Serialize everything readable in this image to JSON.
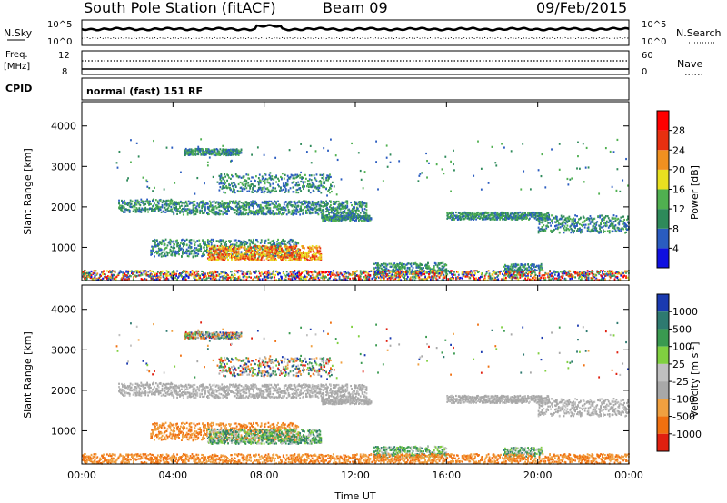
{
  "header": {
    "station": "South Pole Station (fitACF)",
    "beam": "Beam 09",
    "date": "09/Feb/2015"
  },
  "top_panels": {
    "nsky_label": "N.Sky",
    "nsearch_label": "N.Search",
    "noise_ticks": [
      "10^5",
      "10^0"
    ],
    "noise_ticks_right": [
      "10^5",
      "10^0"
    ],
    "freq_label": "Freq.",
    "freq_unit": "[MHz]",
    "freq_ticks": [
      "12",
      "8"
    ],
    "nave_label": "Nave",
    "nave_ticks": [
      "60",
      "0"
    ],
    "cpid_label": "CPID",
    "cpid_value": "normal (fast) 151 RF"
  },
  "chart_data": [
    {
      "type": "heatmap",
      "name": "power",
      "ylabel": "Slant Range [km]",
      "ylim": [
        180,
        4600
      ],
      "y_ticks": [
        "1000",
        "2000",
        "3000",
        "4000"
      ],
      "colorbar": {
        "label": "Power [dB]",
        "ticks": [
          "4",
          "8",
          "12",
          "16",
          "20",
          "24",
          "28"
        ],
        "colors": [
          "#1010e0",
          "#2a5cc0",
          "#2e8a5a",
          "#50b050",
          "#e8e020",
          "#f09020",
          "#e83010",
          "#ff0000"
        ]
      }
    },
    {
      "type": "heatmap",
      "name": "velocity",
      "ylabel": "Slant Range [km]",
      "xlabel": "Time UT",
      "ylim": [
        180,
        4600
      ],
      "x_ticks": [
        "00:00",
        "04:00",
        "08:00",
        "12:00",
        "16:00",
        "20:00",
        "00:00"
      ],
      "y_ticks": [
        "1000",
        "2000",
        "3000",
        "4000"
      ],
      "colorbar": {
        "label": "Velocity [m s",
        "label_exp": "-1",
        "ticks": [
          "1000",
          "500",
          "100",
          "25",
          "-25",
          "-100",
          "-500",
          "-1000"
        ],
        "colors": [
          "#1a3ab0",
          "#2e7a70",
          "#3a9a50",
          "#80d040",
          "#c0c0c0",
          "#a8a8a8",
          "#f0a040",
          "#f07010",
          "#e02010"
        ]
      }
    }
  ]
}
